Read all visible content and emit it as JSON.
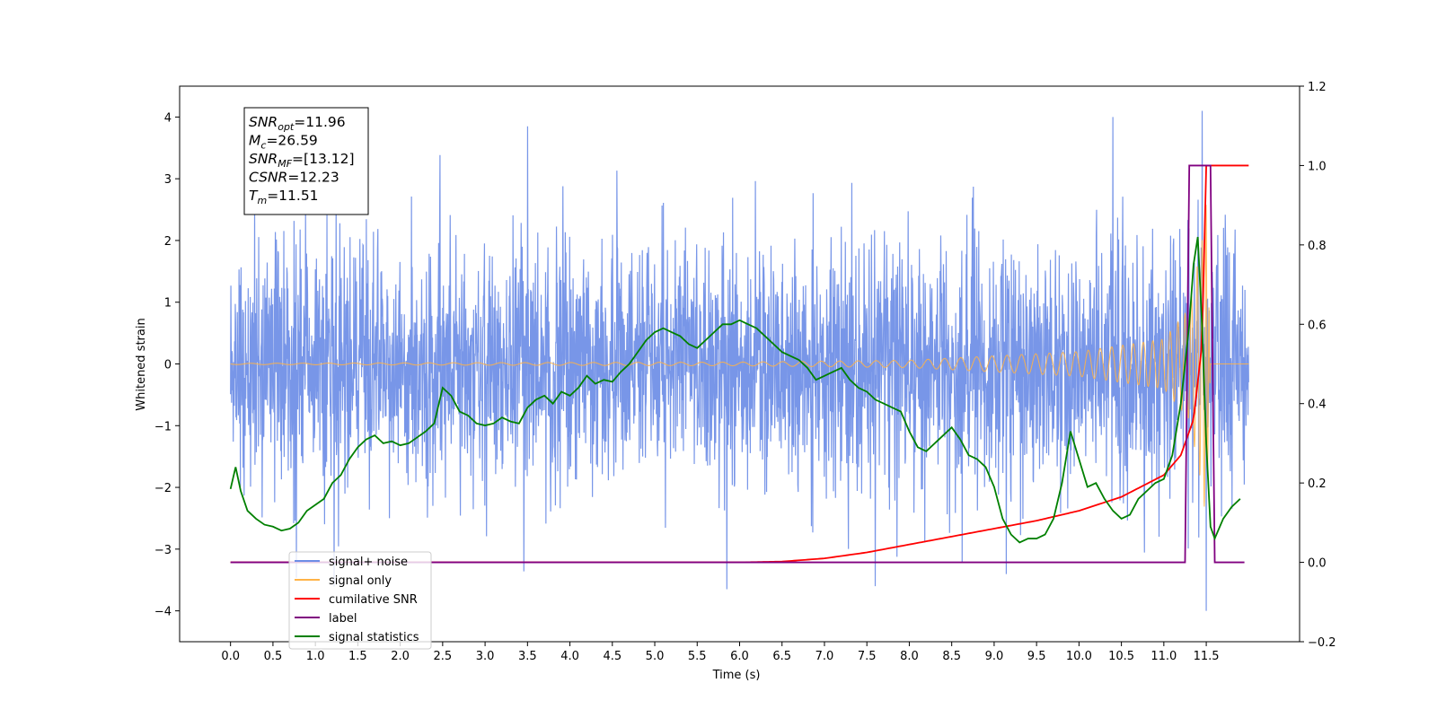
{
  "chart_data": {
    "type": "line",
    "xlabel": "Time (s)",
    "ylabel": "Whitened strain",
    "xlim": [
      -0.6,
      12.6
    ],
    "ylim": [
      -4.5,
      4.5
    ],
    "y2lim": [
      -0.2,
      1.2
    ],
    "x_ticks": [
      "0.0",
      "0.5",
      "1.0",
      "1.5",
      "2.0",
      "2.5",
      "3.0",
      "3.5",
      "4.0",
      "4.5",
      "5.0",
      "5.5",
      "6.0",
      "6.5",
      "7.0",
      "7.5",
      "8.0",
      "8.5",
      "9.0",
      "9.5",
      "10.0",
      "10.5",
      "11.0",
      "11.5"
    ],
    "y_ticks": [
      "4",
      "3",
      "2",
      "1",
      "0",
      "−1",
      "−2",
      "−3",
      "−4"
    ],
    "y2_ticks": [
      "1.2",
      "1.0",
      "0.8",
      "0.6",
      "0.4",
      "0.2",
      "0.0",
      "−0.2"
    ],
    "colors": {
      "signal_noise": "#6d8de6",
      "signal_only": "#ffb347",
      "cumulative_snr": "#ff0000",
      "label": "#800080",
      "signal_statistics": "#008000"
    },
    "annotation": [
      {
        "base": "SNR",
        "sub": "opt",
        "value": "=11.96"
      },
      {
        "base": "M",
        "sub": "c",
        "value": "=26.59"
      },
      {
        "base": "SNR",
        "sub": "MF",
        "value": "=[13.12]"
      },
      {
        "base": "CSNR",
        "sub": "",
        "value": "=12.23"
      },
      {
        "base": "T",
        "sub": "m",
        "value": "=11.51"
      }
    ],
    "legend_position": "lower-left",
    "series": [
      {
        "name": "signal+ noise",
        "axis": "left",
        "x_range": [
          0.0,
          12.0
        ],
        "amplitude_rms": 1.0,
        "peaks": [
          [
            11.45,
            4.1
          ],
          [
            11.5,
            -4.0
          ],
          [
            10.4,
            4.0
          ],
          [
            3.5,
            3.85
          ],
          [
            5.85,
            -3.65
          ],
          [
            7.6,
            -3.6
          ]
        ]
      },
      {
        "name": "signal only",
        "axis": "left",
        "x_range": [
          0.0,
          12.0
        ],
        "envelope": [
          [
            0.0,
            0.01
          ],
          [
            6.0,
            0.03
          ],
          [
            8.0,
            0.06
          ],
          [
            10.0,
            0.2
          ],
          [
            11.0,
            0.4
          ],
          [
            11.3,
            0.9
          ],
          [
            11.45,
            2.0
          ],
          [
            11.5,
            2.6
          ],
          [
            11.55,
            0.0
          ]
        ]
      },
      {
        "name": "cumilative SNR",
        "axis": "right",
        "x": [
          0.0,
          6.0,
          6.5,
          7.0,
          7.5,
          8.0,
          8.5,
          9.0,
          9.5,
          10.0,
          10.5,
          11.0,
          11.2,
          11.35,
          11.45,
          11.5,
          12.0
        ],
        "y": [
          0.0,
          0.0,
          0.002,
          0.01,
          0.025,
          0.045,
          0.065,
          0.085,
          0.105,
          0.13,
          0.165,
          0.22,
          0.27,
          0.36,
          0.55,
          1.0,
          1.0
        ]
      },
      {
        "name": "label",
        "axis": "right",
        "x": [
          0.0,
          11.25,
          11.3,
          11.55,
          11.6,
          11.95
        ],
        "y": [
          0.0,
          0.0,
          1.0,
          1.0,
          0.0,
          0.0
        ]
      },
      {
        "name": "signal statistics",
        "axis": "right",
        "x": [
          0.0,
          0.06,
          0.12,
          0.2,
          0.3,
          0.4,
          0.5,
          0.6,
          0.7,
          0.8,
          0.9,
          1.0,
          1.1,
          1.2,
          1.3,
          1.4,
          1.5,
          1.6,
          1.7,
          1.8,
          1.9,
          2.0,
          2.1,
          2.2,
          2.3,
          2.4,
          2.5,
          2.6,
          2.7,
          2.8,
          2.9,
          3.0,
          3.1,
          3.2,
          3.3,
          3.4,
          3.5,
          3.6,
          3.7,
          3.8,
          3.9,
          4.0,
          4.1,
          4.2,
          4.3,
          4.4,
          4.5,
          4.6,
          4.7,
          4.8,
          4.9,
          5.0,
          5.1,
          5.2,
          5.3,
          5.4,
          5.5,
          5.6,
          5.7,
          5.8,
          5.9,
          6.0,
          6.1,
          6.2,
          6.3,
          6.4,
          6.5,
          6.6,
          6.7,
          6.8,
          6.9,
          7.0,
          7.1,
          7.2,
          7.3,
          7.4,
          7.5,
          7.6,
          7.7,
          7.8,
          7.9,
          8.0,
          8.1,
          8.2,
          8.3,
          8.4,
          8.5,
          8.6,
          8.7,
          8.8,
          8.9,
          9.0,
          9.1,
          9.2,
          9.3,
          9.4,
          9.5,
          9.6,
          9.7,
          9.8,
          9.9,
          10.0,
          10.1,
          10.2,
          10.3,
          10.4,
          10.5,
          10.6,
          10.7,
          10.8,
          10.9,
          11.0,
          11.1,
          11.2,
          11.3,
          11.35,
          11.4,
          11.45,
          11.5,
          11.55,
          11.6,
          11.7,
          11.8,
          11.9
        ],
        "y": [
          0.185,
          0.24,
          0.18,
          0.13,
          0.11,
          0.095,
          0.09,
          0.08,
          0.085,
          0.1,
          0.13,
          0.145,
          0.16,
          0.2,
          0.22,
          0.26,
          0.29,
          0.31,
          0.32,
          0.3,
          0.305,
          0.295,
          0.3,
          0.315,
          0.33,
          0.35,
          0.44,
          0.42,
          0.38,
          0.37,
          0.35,
          0.345,
          0.35,
          0.365,
          0.355,
          0.35,
          0.39,
          0.41,
          0.42,
          0.4,
          0.43,
          0.42,
          0.44,
          0.47,
          0.45,
          0.46,
          0.455,
          0.48,
          0.5,
          0.53,
          0.56,
          0.58,
          0.59,
          0.58,
          0.57,
          0.55,
          0.54,
          0.56,
          0.58,
          0.6,
          0.6,
          0.61,
          0.6,
          0.59,
          0.57,
          0.55,
          0.53,
          0.52,
          0.51,
          0.49,
          0.46,
          0.47,
          0.48,
          0.49,
          0.46,
          0.44,
          0.43,
          0.41,
          0.4,
          0.39,
          0.38,
          0.33,
          0.29,
          0.28,
          0.3,
          0.32,
          0.34,
          0.31,
          0.27,
          0.26,
          0.24,
          0.19,
          0.11,
          0.07,
          0.05,
          0.06,
          0.06,
          0.07,
          0.11,
          0.2,
          0.33,
          0.26,
          0.19,
          0.2,
          0.16,
          0.13,
          0.11,
          0.12,
          0.16,
          0.18,
          0.2,
          0.21,
          0.27,
          0.4,
          0.6,
          0.75,
          0.82,
          0.6,
          0.3,
          0.09,
          0.06,
          0.11,
          0.14,
          0.16
        ]
      }
    ]
  }
}
